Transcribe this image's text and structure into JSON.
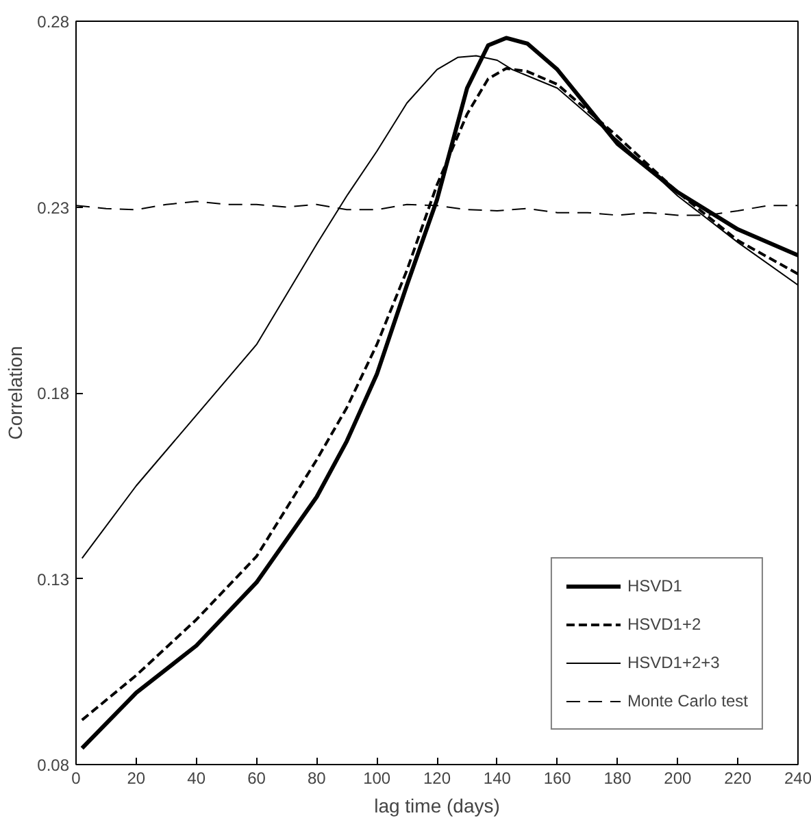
{
  "chart_data": {
    "type": "line",
    "xlabel": "lag time (days)",
    "ylabel": "Correlation",
    "xlim": [
      0,
      240
    ],
    "ylim": [
      0.08,
      0.28
    ],
    "xticks": [
      0,
      20,
      40,
      60,
      80,
      100,
      120,
      140,
      160,
      180,
      200,
      220,
      240
    ],
    "yticks": [
      0.08,
      0.13,
      0.18,
      0.23,
      0.28
    ],
    "grid": false,
    "legend": "bottom right",
    "series": [
      {
        "name": "HSVD1",
        "color": "#000000",
        "line_style": "solid",
        "x": [
          2,
          20,
          40,
          60,
          80,
          90,
          100,
          110,
          120,
          130,
          137,
          143,
          150,
          160,
          180,
          200,
          220,
          240
        ],
        "values": [
          0.0844,
          0.0993,
          0.112,
          0.129,
          0.152,
          0.167,
          0.185,
          0.209,
          0.232,
          0.262,
          0.2735,
          0.2755,
          0.274,
          0.267,
          0.247,
          0.234,
          0.224,
          0.217
        ]
      },
      {
        "name": "HSVD1+2",
        "color": "#000000",
        "line_style": "dashed",
        "x": [
          2,
          20,
          40,
          60,
          80,
          90,
          100,
          110,
          120,
          130,
          137,
          143,
          150,
          160,
          180,
          200,
          220,
          240
        ],
        "values": [
          0.092,
          0.104,
          0.119,
          0.136,
          0.162,
          0.176,
          0.193,
          0.213,
          0.236,
          0.255,
          0.2645,
          0.2673,
          0.2665,
          0.263,
          0.249,
          0.234,
          0.221,
          0.212
        ]
      },
      {
        "name": "HSVD1+2+3",
        "color": "#000000",
        "line_style": "solid",
        "x": [
          2,
          20,
          40,
          60,
          80,
          90,
          100,
          110,
          120,
          127,
          133,
          140,
          145,
          160,
          180,
          200,
          220,
          240
        ],
        "values": [
          0.1355,
          0.155,
          0.174,
          0.193,
          0.22,
          0.233,
          0.245,
          0.258,
          0.267,
          0.2703,
          0.2707,
          0.2695,
          0.267,
          0.262,
          0.248,
          0.233,
          0.2205,
          0.209
        ]
      },
      {
        "name": "Monte Carlo test",
        "color": "#000000",
        "line_style": "dashed",
        "x": [
          0,
          10,
          20,
          30,
          40,
          50,
          60,
          70,
          80,
          90,
          100,
          110,
          120,
          130,
          140,
          150,
          160,
          170,
          180,
          190,
          200,
          210,
          220,
          230,
          240
        ],
        "values": [
          0.2304,
          0.2296,
          0.2293,
          0.2307,
          0.2315,
          0.2307,
          0.2307,
          0.23,
          0.2307,
          0.2293,
          0.2293,
          0.2307,
          0.2304,
          0.2293,
          0.229,
          0.2296,
          0.2285,
          0.2285,
          0.2278,
          0.2285,
          0.2278,
          0.2278,
          0.229,
          0.2304,
          0.2304
        ]
      }
    ]
  }
}
